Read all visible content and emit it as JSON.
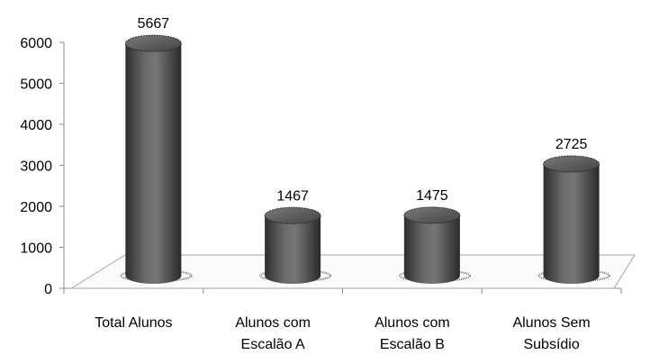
{
  "chart_data": {
    "type": "bar",
    "style": "3d-cylinder",
    "categories": [
      [
        "Total Alunos"
      ],
      [
        "Alunos com",
        "Escalão A"
      ],
      [
        "Alunos com",
        "Escalão B"
      ],
      [
        "Alunos Sem",
        "Subsídio"
      ]
    ],
    "values": [
      5667,
      1467,
      1475,
      2725
    ],
    "data_labels": [
      "5667",
      "1467",
      "1475",
      "2725"
    ],
    "y_ticks": [
      "0",
      "1000",
      "2000",
      "3000",
      "4000",
      "5000",
      "6000"
    ],
    "ylim": [
      0,
      6000
    ],
    "title": "",
    "xlabel": "",
    "ylabel": "",
    "grid": false,
    "legend": "none",
    "colors": {
      "bar": "#5a5a5a",
      "bar_dark": "#2e2e2e",
      "bar_light": "#8a8a8a",
      "axis": "#8c8c8c",
      "floor": "#a6a6a6"
    }
  }
}
